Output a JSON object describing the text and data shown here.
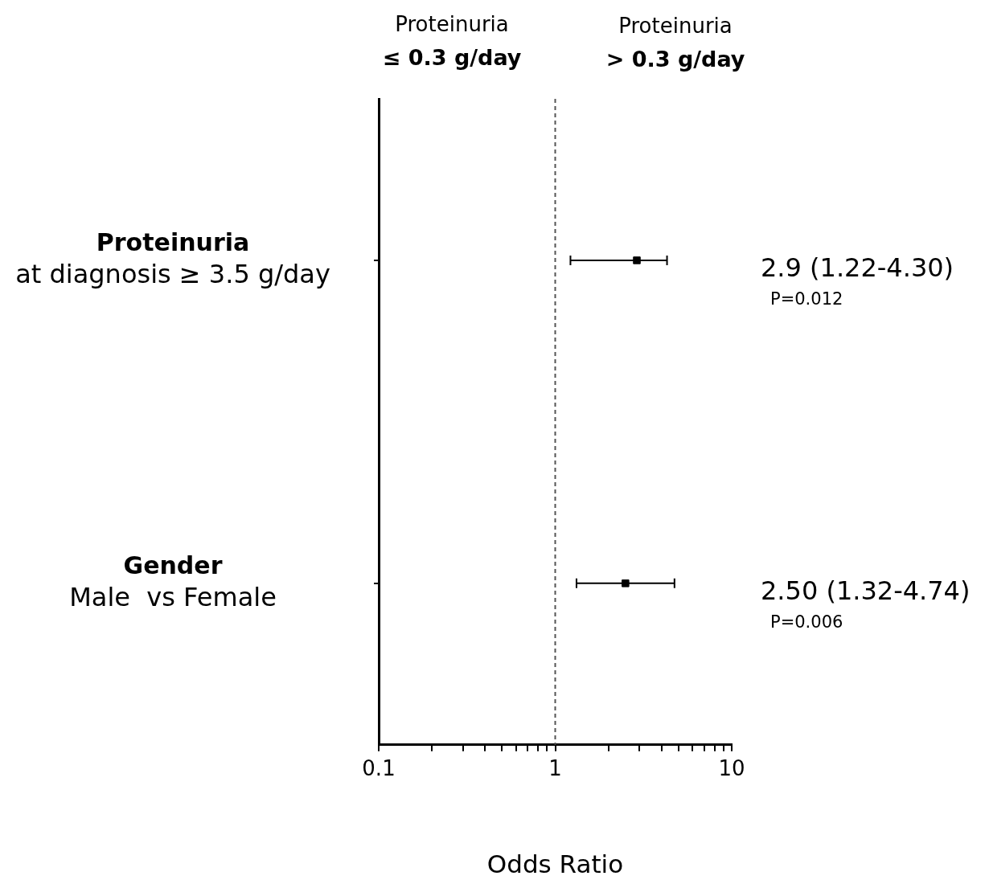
{
  "chart_data": {
    "type": "scatter",
    "orientation": "horizontal",
    "categories": [
      "Proteinuria\nat diagnosis ≥ 3.5 g/day",
      "Gender\nMale  vs Female"
    ],
    "values": [
      2.9,
      2.5
    ],
    "errors": [
      [
        1.22,
        4.3
      ],
      [
        1.32,
        4.74
      ]
    ],
    "color": "#000000",
    "marker": "square",
    "log": "x",
    "xlim": [
      0.1,
      10
    ],
    "xticks": [
      0.1,
      {
        "value": 0.2,
        "label": null
      },
      {
        "value": 0.3,
        "label": null
      },
      {
        "value": 0.4,
        "label": null
      },
      {
        "value": 0.5,
        "label": null
      },
      {
        "value": 0.6,
        "label": null
      },
      {
        "value": 0.7,
        "label": null
      },
      {
        "value": 0.8,
        "label": null
      },
      {
        "value": 0.9,
        "label": null
      },
      1,
      {
        "value": 2,
        "label": null
      },
      {
        "value": 3,
        "label": null
      },
      {
        "value": 4,
        "label": null
      },
      {
        "value": 5,
        "label": null
      },
      {
        "value": 6,
        "label": null
      },
      {
        "value": 7,
        "label": null
      },
      {
        "value": 8,
        "label": null
      },
      {
        "value": 9,
        "label": null
      },
      10
    ],
    "xlabel": "Odds Ratio",
    "ref_lines": [
      {
        "axis": "x",
        "value": 1,
        "line_style": "dashed",
        "color": "#555555"
      }
    ],
    "annotations": [
      "Proteinuria\n≤ 0.3 g/day",
      "Proteinuria\n> 0.3 g/day",
      "2.9 (1.22-4.30)\nP=0.012",
      "2.50 (1.32-4.74)\nP=0.006"
    ],
    "grid": false,
    "legend": false
  }
}
